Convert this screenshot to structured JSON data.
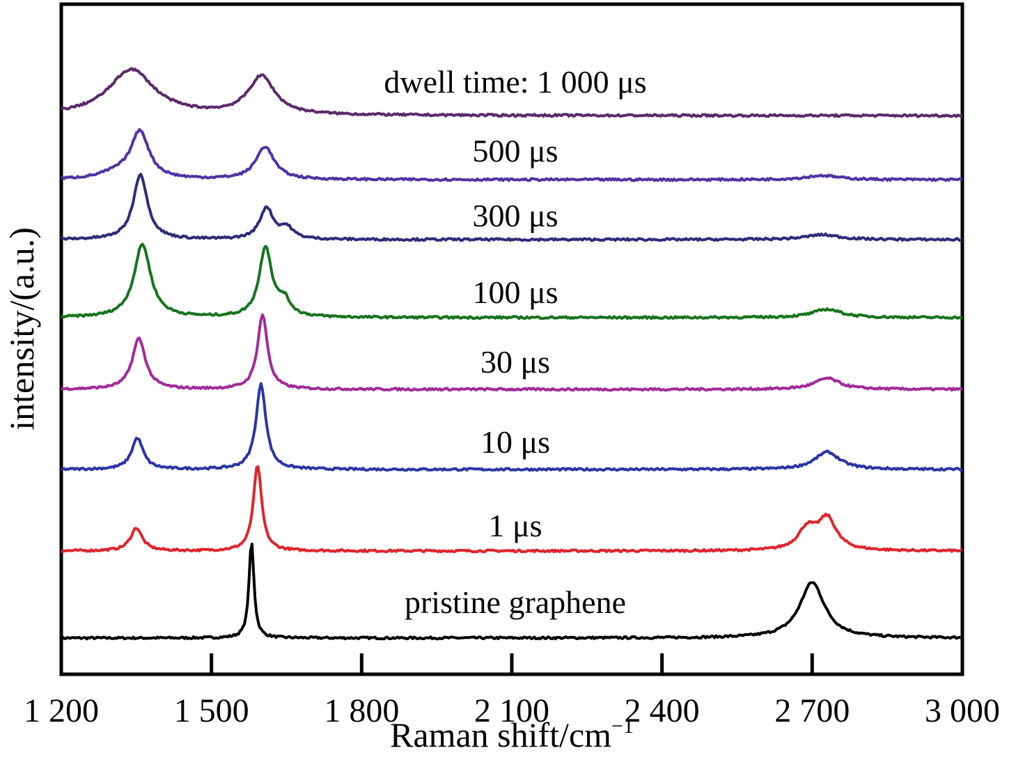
{
  "chart_data": {
    "type": "line",
    "xlabel": "Raman shift/cm",
    "xlabel_sup": "−1",
    "ylabel": "intensity/(a.u.)",
    "xlim": [
      1200,
      3000
    ],
    "x_ticks": [
      1200,
      1500,
      1800,
      2100,
      2400,
      2700,
      3000
    ],
    "x_tick_labels": [
      "1 200",
      "1 500",
      "1 800",
      "2 100",
      "2 400",
      "2 700",
      "3 000"
    ],
    "grid": false,
    "legend": "none",
    "vertical_offset": true,
    "series": [
      {
        "name": "pristine graphene",
        "color": "#000000",
        "baseline": 0.0,
        "peaks": [
          {
            "center": 1580,
            "height": 1.38,
            "width": 6
          },
          {
            "center": 2700,
            "height": 0.8,
            "width": 30
          }
        ]
      },
      {
        "name": "1 μs",
        "color": "#e0242c",
        "baseline": 1.25,
        "peaks": [
          {
            "center": 1350,
            "height": 0.33,
            "width": 14
          },
          {
            "center": 1592,
            "height": 1.23,
            "width": 10
          },
          {
            "center": 2690,
            "height": 0.3,
            "width": 22
          },
          {
            "center": 2730,
            "height": 0.45,
            "width": 22
          }
        ]
      },
      {
        "name": "10 μs",
        "color": "#2b34a6",
        "baseline": 2.42,
        "peaks": [
          {
            "center": 1352,
            "height": 0.45,
            "width": 14
          },
          {
            "center": 1599,
            "height": 1.22,
            "width": 12
          },
          {
            "center": 2730,
            "height": 0.25,
            "width": 30
          }
        ]
      },
      {
        "name": "30 μs",
        "color": "#a12b9a",
        "baseline": 3.57,
        "peaks": [
          {
            "center": 1355,
            "height": 0.73,
            "width": 16
          },
          {
            "center": 1602,
            "height": 1.07,
            "width": 12
          },
          {
            "center": 2730,
            "height": 0.16,
            "width": 30
          }
        ]
      },
      {
        "name": "100 μs",
        "color": "#16741e",
        "baseline": 4.6,
        "peaks": [
          {
            "center": 1362,
            "height": 1.05,
            "width": 20
          },
          {
            "center": 1608,
            "height": 1.0,
            "width": 15
          },
          {
            "center": 1645,
            "height": 0.22,
            "width": 15
          },
          {
            "center": 2730,
            "height": 0.12,
            "width": 35
          }
        ]
      },
      {
        "name": "300 μs",
        "color": "#2c2c78",
        "baseline": 5.72,
        "peaks": [
          {
            "center": 1358,
            "height": 0.94,
            "width": 17
          },
          {
            "center": 1610,
            "height": 0.45,
            "width": 16
          },
          {
            "center": 1650,
            "height": 0.16,
            "width": 16
          },
          {
            "center": 2720,
            "height": 0.07,
            "width": 40
          }
        ]
      },
      {
        "name": "500 μs",
        "color": "#5131a4",
        "baseline": 6.58,
        "peaks": [
          {
            "center": 1357,
            "height": 0.68,
            "width": 22
          },
          {
            "center": 1310,
            "height": 0.08,
            "width": 40
          },
          {
            "center": 1607,
            "height": 0.47,
            "width": 22
          },
          {
            "center": 2720,
            "height": 0.06,
            "width": 40
          }
        ]
      },
      {
        "name": "dwell time: 1 000 μs",
        "color": "#5a2a6a",
        "baseline": 7.5,
        "peaks": [
          {
            "center": 1340,
            "height": 0.66,
            "width": 55
          },
          {
            "center": 1600,
            "height": 0.55,
            "width": 32
          }
        ]
      }
    ]
  }
}
